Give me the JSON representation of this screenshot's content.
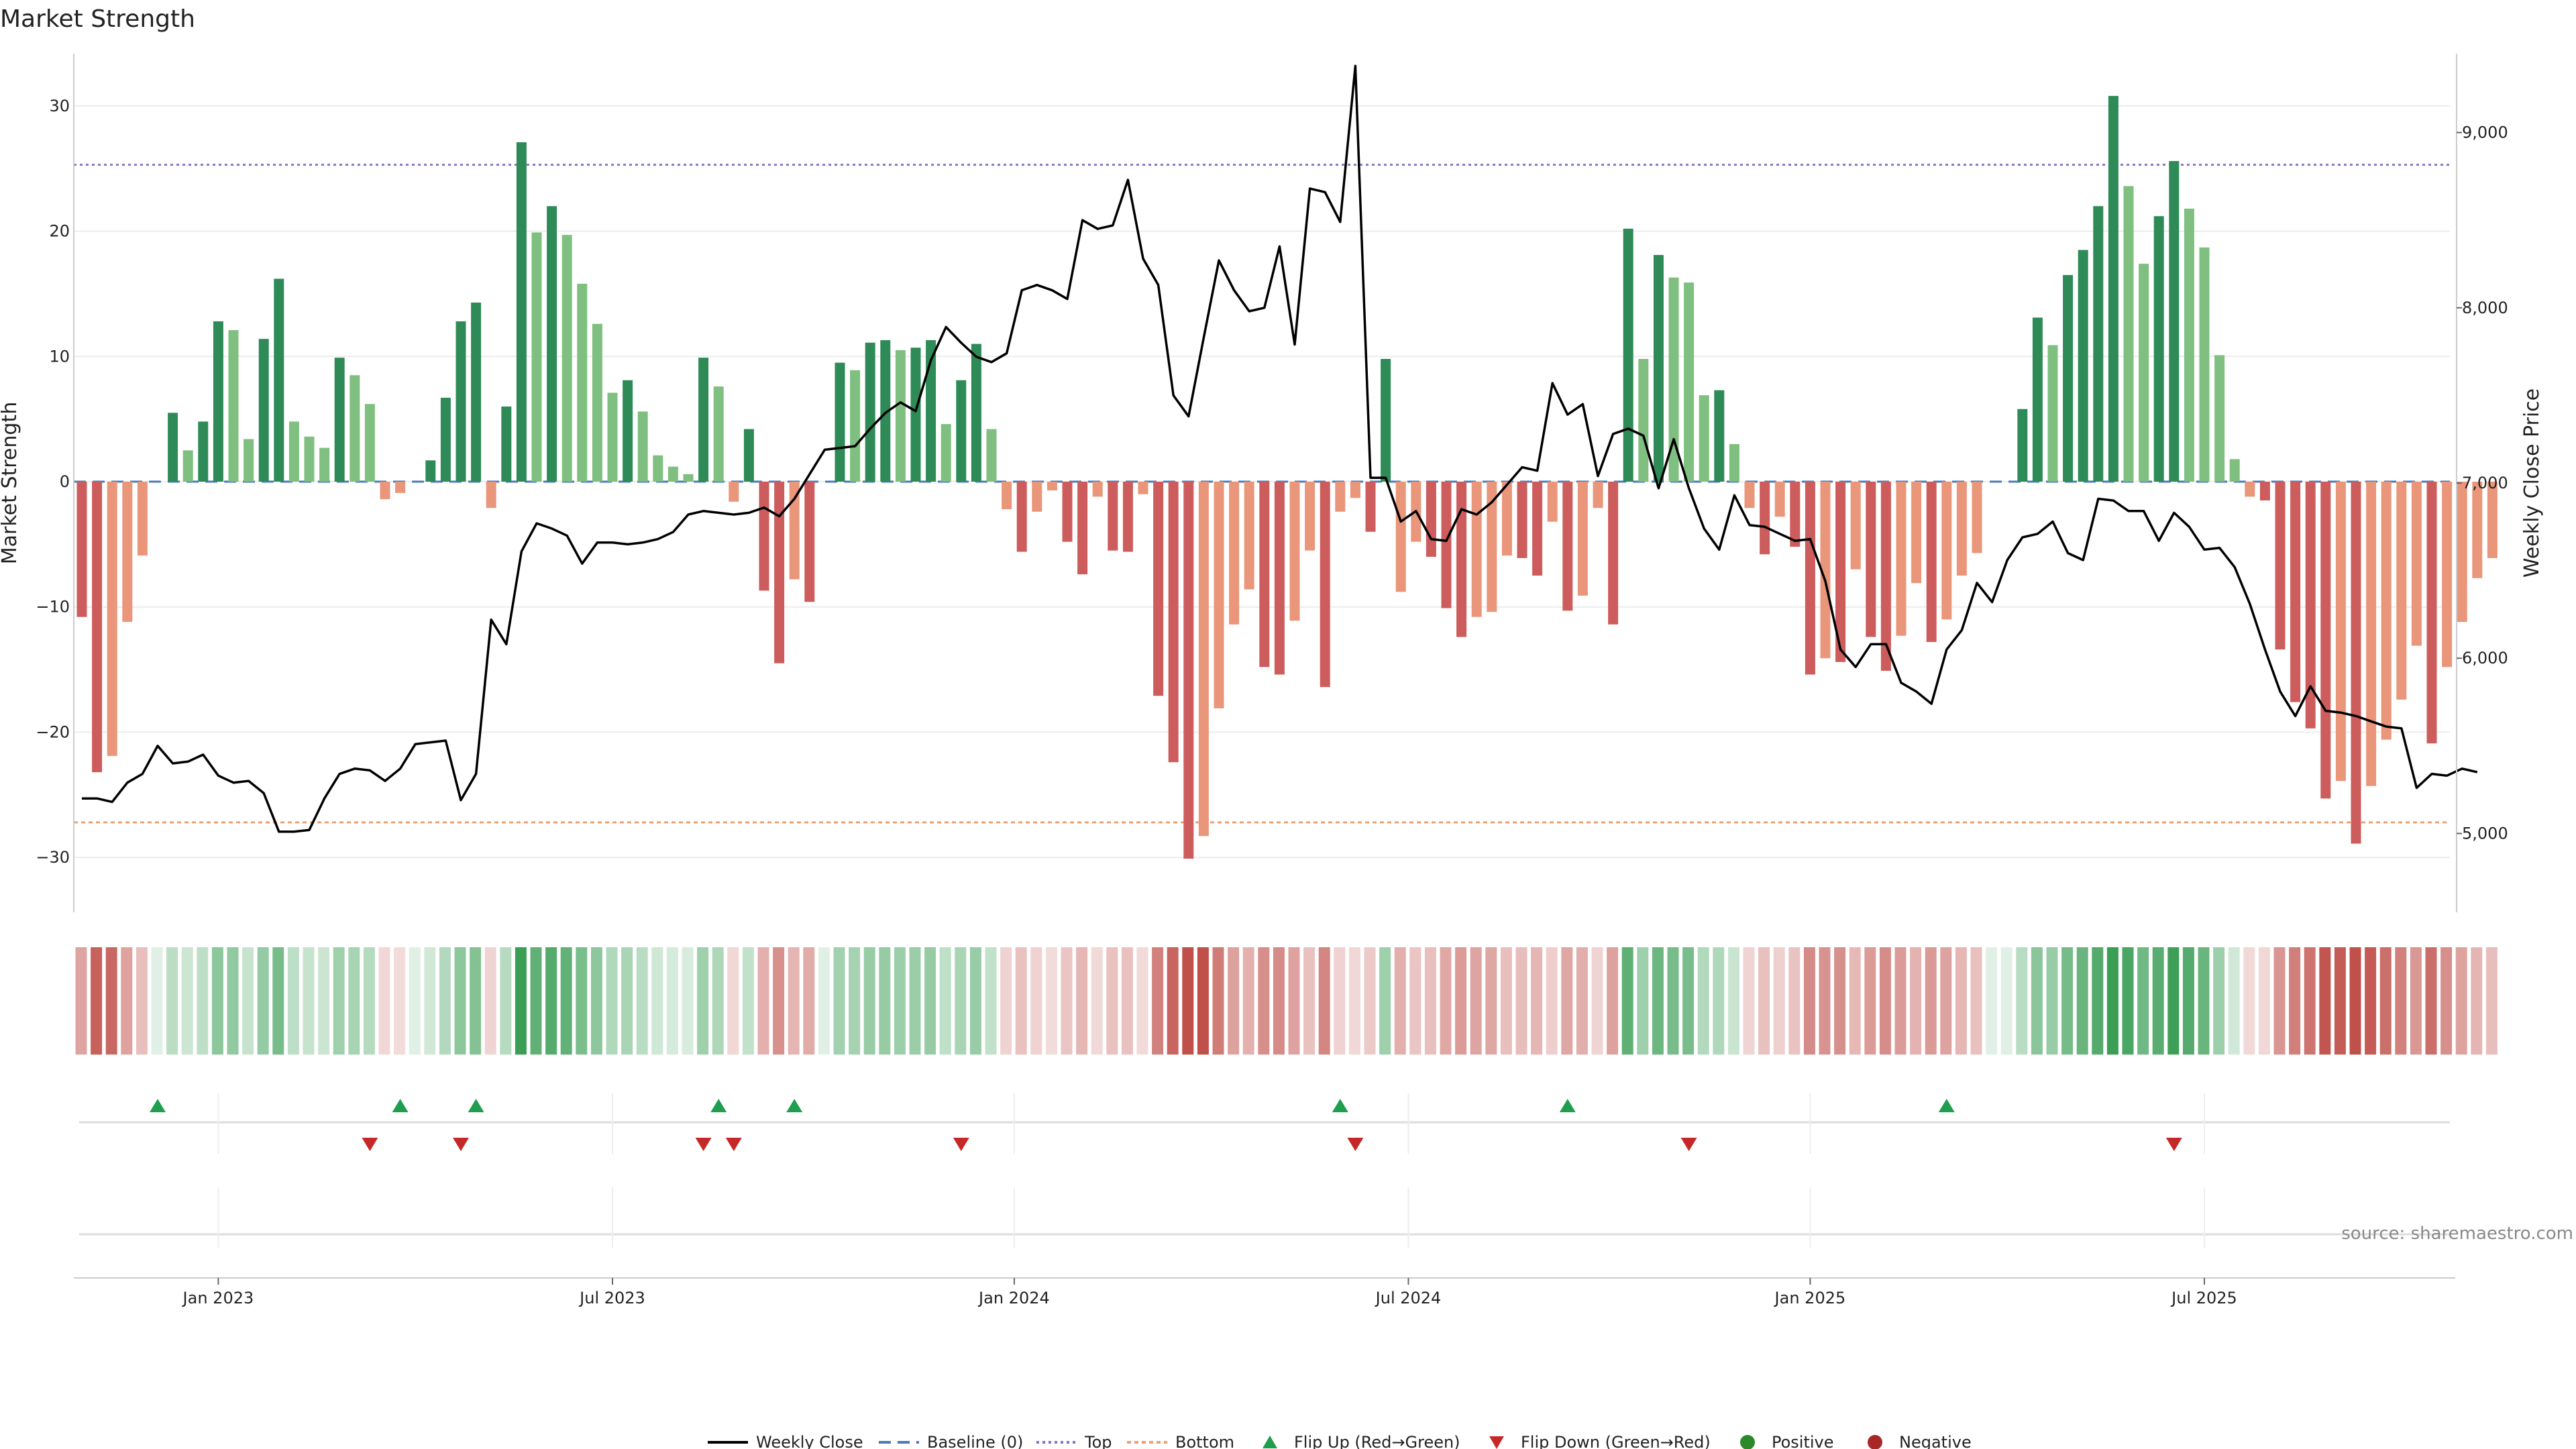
{
  "chart_data": {
    "type": "bar",
    "title": "Market Strength",
    "ylabel_left": "Market Strength",
    "ylabel_right": "Weekly Close Price",
    "source": "source: sharemaestro.com",
    "y_left_range": [
      -35,
      35
    ],
    "y_left_ticks": [
      30,
      20,
      10,
      0,
      -10,
      -20,
      -30
    ],
    "y_left_tick_labels": [
      "30",
      "20",
      "10",
      "0",
      "−10",
      "−20",
      "−30"
    ],
    "y_right_range": [
      4550,
      9450
    ],
    "y_right_ticks": [
      9000,
      8000,
      7000,
      6000,
      5000
    ],
    "y_right_tick_labels": [
      "9,000",
      "8,000",
      "7,000",
      "6,000",
      "5,000"
    ],
    "x_ticks": [
      {
        "label": "Jan 2023",
        "week": 9
      },
      {
        "label": "Jul 2023",
        "week": 35
      },
      {
        "label": "Jan 2024",
        "week": 61.5
      },
      {
        "label": "Jul 2024",
        "week": 87.5
      },
      {
        "label": "Jan 2025",
        "week": 114
      },
      {
        "label": "Jul 2025",
        "week": 140
      }
    ],
    "top_level": 25.3,
    "bottom_level": -27.2,
    "strength": [
      -10.8,
      -23.2,
      -21.9,
      -11.2,
      -5.9,
      0,
      5.5,
      2.5,
      4.8,
      12.8,
      12.1,
      3.4,
      11.4,
      16.2,
      4.8,
      3.6,
      2.7,
      9.9,
      8.5,
      6.2,
      -1.4,
      -0.9,
      0,
      1.7,
      6.7,
      12.8,
      14.3,
      -2.1,
      6,
      27.1,
      19.9,
      22,
      19.7,
      15.8,
      12.6,
      7.1,
      8.1,
      5.6,
      2.1,
      1.2,
      0.6,
      9.9,
      7.6,
      -1.6,
      4.2,
      -8.7,
      -14.5,
      -7.8,
      -9.6,
      0,
      9.5,
      8.9,
      11.1,
      11.3,
      10.5,
      10.7,
      11.3,
      4.6,
      8.1,
      11,
      4.2,
      -2.2,
      -5.6,
      -2.4,
      -0.7,
      -4.8,
      -7.4,
      -1.2,
      -5.5,
      -5.6,
      -1,
      -17.1,
      -22.4,
      -30.1,
      -28.3,
      -18.1,
      -11.4,
      -8.6,
      -14.8,
      -15.4,
      -11.1,
      -5.5,
      -16.4,
      -2.4,
      -1.3,
      -4,
      9.8,
      -8.8,
      -4.8,
      -6,
      -10.1,
      -12.4,
      -10.8,
      -10.4,
      -5.9,
      -6.1,
      -7.5,
      -3.2,
      -10.3,
      -9.1,
      -2.1,
      -11.4,
      20.2,
      9.8,
      18.1,
      16.3,
      15.9,
      6.9,
      7.3,
      3,
      -2.1,
      -5.8,
      -2.8,
      -5.2,
      -15.4,
      -14.1,
      -14.4,
      -7,
      -12.4,
      -15.1,
      -12.3,
      -8.1,
      -12.8,
      -11,
      -7.5,
      -5.7,
      0,
      0,
      5.8,
      13.1,
      10.9,
      16.5,
      18.5,
      22,
      30.8,
      23.6,
      17.4,
      21.2,
      25.6,
      21.8,
      18.7,
      10.1,
      1.8,
      -1.2,
      -1.5,
      -13.4,
      -17.6,
      -19.7,
      -25.3,
      -23.9,
      -28.9,
      -24.3,
      -20.6,
      -17.4,
      -13.1,
      -20.9,
      -14.8,
      -11.2,
      -7.7,
      -6.1
    ],
    "close": [
      5200,
      5200,
      5180,
      5290,
      5340,
      5500,
      5400,
      5410,
      5450,
      5330,
      5290,
      5300,
      5230,
      5010,
      5010,
      5020,
      5200,
      5340,
      5370,
      5360,
      5300,
      5370,
      5510,
      5520,
      5530,
      5190,
      5340,
      6220,
      6080,
      6610,
      6770,
      6740,
      6700,
      6540,
      6660,
      6660,
      6650,
      6660,
      6680,
      6720,
      6820,
      6840,
      6830,
      6820,
      6830,
      6860,
      6810,
      6910,
      7050,
      7190,
      7200,
      7210,
      7310,
      7400,
      7460,
      7410,
      7700,
      7890,
      7800,
      7720,
      7690,
      7740,
      8100,
      8130,
      8100,
      8050,
      8500,
      8450,
      8470,
      8730,
      8280,
      8130,
      7500,
      7380,
      7830,
      8270,
      8100,
      7980,
      8000,
      8350,
      7790,
      8680,
      8660,
      8490,
      9380,
      7030,
      7030,
      6780,
      6840,
      6680,
      6670,
      6850,
      6820,
      6890,
      6990,
      7090,
      7070,
      7570,
      7390,
      7450,
      7040,
      7280,
      7310,
      7270,
      6970,
      7250,
      6970,
      6740,
      6620,
      6930,
      6760,
      6750,
      6710,
      6670,
      6680,
      6440,
      6050,
      5950,
      6080,
      6080,
      5860,
      5810,
      5740,
      6050,
      6160,
      6430,
      6320,
      6560,
      6690,
      6710,
      6780,
      6600,
      6560,
      6910,
      6900,
      6840,
      6840,
      6670,
      6830,
      6750,
      6620,
      6630,
      6520,
      6310,
      6050,
      5810,
      5670,
      5840,
      5700,
      5690,
      5670,
      5640,
      5610,
      5600,
      5260,
      5340,
      5330,
      5370,
      5350
    ],
    "flip_up_weeks": [
      5,
      21,
      26,
      42,
      47,
      83,
      98,
      123
    ],
    "flip_down_weeks": [
      19,
      25,
      41,
      43,
      58,
      84,
      106,
      138
    ],
    "legend": [
      "Weekly Close",
      "Baseline (0)",
      "Top",
      "Bottom",
      "Flip Up (Red→Green)",
      "Flip Down (Green→Red)",
      "Positive",
      "Negative"
    ],
    "colors": {
      "green_dark": "#2e8b57",
      "green_light": "#7fbf7f",
      "red_dark": "#cd5c5c",
      "red_light": "#e9967a",
      "close_line": "#000000",
      "baseline": "#4a7ab8",
      "top": "#8a72c4",
      "bottom": "#f0a070",
      "flip_up": "#1f9e4f",
      "flip_down": "#c62828",
      "positive": "#2a8a2a",
      "negative": "#a82828"
    }
  }
}
